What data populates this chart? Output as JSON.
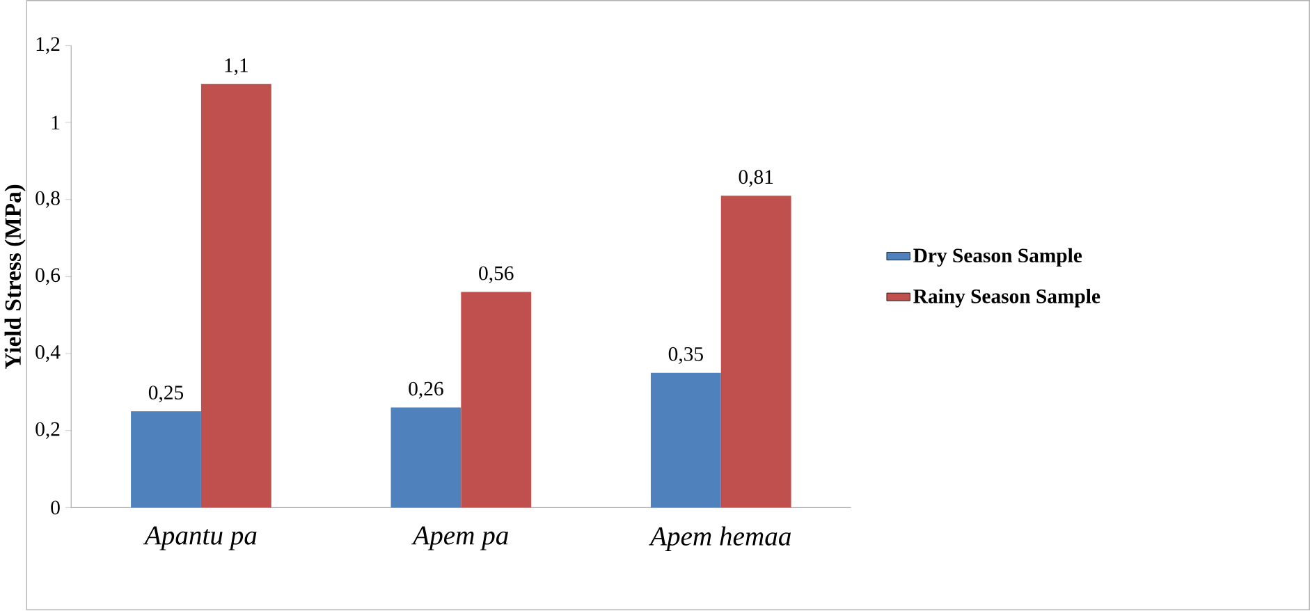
{
  "chart_data": {
    "type": "bar",
    "ylabel": "Yield Stress (MPa)",
    "categories": [
      "Apantu pa",
      "Apem pa",
      "Apem hemaa"
    ],
    "series": [
      {
        "name": "Dry Season Sample",
        "color": "#4f81bd",
        "values": [
          0.25,
          0.26,
          0.35
        ],
        "value_labels": [
          "0,25",
          "0,26",
          "0,35"
        ]
      },
      {
        "name": "Rainy Season Sample",
        "color": "#c0504d",
        "values": [
          1.1,
          0.56,
          0.81
        ],
        "value_labels": [
          "1,1",
          "0,56",
          "0,81"
        ]
      }
    ],
    "ylim": [
      0,
      1.2
    ],
    "yticks": [
      0,
      {
        "value": 0.2,
        "label": "0,2"
      },
      {
        "value": 0.4,
        "label": "0,4"
      },
      {
        "value": 0.6,
        "label": "0,6"
      },
      {
        "value": 0.8,
        "label": "0,8"
      },
      1,
      {
        "value": 1.2,
        "label": "1,2"
      }
    ],
    "grid": false,
    "legend": "right"
  }
}
